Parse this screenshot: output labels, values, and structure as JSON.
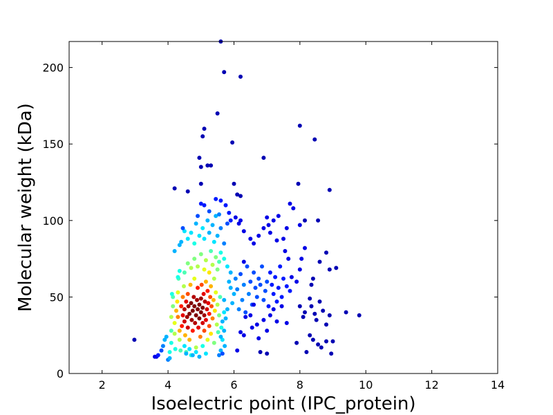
{
  "chart_data": {
    "type": "scatter",
    "title": "",
    "xlabel": "Isoelectric point (IPC_protein)",
    "ylabel": "Molecular weight (kDa)",
    "xlim": [
      1,
      14
    ],
    "ylim": [
      0,
      217
    ],
    "xticks": [
      2,
      4,
      6,
      8,
      10,
      12,
      14
    ],
    "yticks": [
      0,
      50,
      100,
      150,
      200
    ],
    "grid": false,
    "legend": "none",
    "colormap": "jet",
    "color_meaning": "point density",
    "points": [
      [
        2.98,
        22,
        0.05
      ],
      [
        3.6,
        11,
        0.1
      ],
      [
        3.65,
        11,
        0.1
      ],
      [
        3.7,
        12,
        0.15
      ],
      [
        3.8,
        15,
        0.2
      ],
      [
        3.85,
        18,
        0.25
      ],
      [
        3.9,
        22,
        0.3
      ],
      [
        3.95,
        24,
        0.3
      ],
      [
        4.0,
        9,
        0.25
      ],
      [
        4.05,
        10,
        0.3
      ],
      [
        4.05,
        14,
        0.4
      ],
      [
        4.1,
        20,
        0.4
      ],
      [
        4.1,
        28,
        0.45
      ],
      [
        4.1,
        37,
        0.55
      ],
      [
        4.15,
        44,
        0.5
      ],
      [
        4.15,
        50,
        0.45
      ],
      [
        4.12,
        52,
        0.4
      ],
      [
        4.2,
        33,
        0.6
      ],
      [
        4.2,
        26,
        0.55
      ],
      [
        4.22,
        16,
        0.4
      ],
      [
        4.25,
        41,
        0.7
      ],
      [
        4.28,
        47,
        0.65
      ],
      [
        4.3,
        37,
        0.75
      ],
      [
        4.3,
        53,
        0.6
      ],
      [
        4.32,
        62,
        0.45
      ],
      [
        4.35,
        28,
        0.7
      ],
      [
        4.35,
        22,
        0.55
      ],
      [
        4.38,
        15,
        0.45
      ],
      [
        4.4,
        44,
        0.85
      ],
      [
        4.42,
        31,
        0.85
      ],
      [
        4.45,
        38,
        0.9
      ],
      [
        4.45,
        50,
        0.75
      ],
      [
        4.48,
        57,
        0.55
      ],
      [
        4.5,
        34,
        0.92
      ],
      [
        4.5,
        42,
        0.95
      ],
      [
        4.52,
        25,
        0.7
      ],
      [
        4.55,
        47,
        0.9
      ],
      [
        4.55,
        14,
        0.45
      ],
      [
        4.58,
        37,
        0.97
      ],
      [
        4.6,
        30,
        0.92
      ],
      [
        4.6,
        52,
        0.8
      ],
      [
        4.62,
        44,
        0.97
      ],
      [
        4.65,
        39,
        1.0
      ],
      [
        4.65,
        22,
        0.7
      ],
      [
        4.68,
        58,
        0.7
      ],
      [
        4.7,
        46,
        1.0
      ],
      [
        4.7,
        12,
        0.4
      ],
      [
        4.72,
        35,
        0.97
      ],
      [
        4.75,
        41,
        1.0
      ],
      [
        4.75,
        28,
        0.85
      ],
      [
        4.78,
        50,
        0.95
      ],
      [
        4.8,
        44,
        1.0
      ],
      [
        4.8,
        62,
        0.6
      ],
      [
        4.82,
        33,
        0.95
      ],
      [
        4.85,
        38,
        1.0
      ],
      [
        4.85,
        17,
        0.55
      ],
      [
        4.88,
        48,
        0.97
      ],
      [
        4.9,
        42,
        1.0
      ],
      [
        4.9,
        56,
        0.85
      ],
      [
        4.92,
        30,
        0.9
      ],
      [
        4.95,
        45,
        1.0
      ],
      [
        4.95,
        36,
        1.0
      ],
      [
        4.98,
        24,
        0.75
      ],
      [
        5.0,
        49,
        0.97
      ],
      [
        5.0,
        40,
        1.0
      ],
      [
        5.02,
        58,
        0.8
      ],
      [
        5.05,
        33,
        0.92
      ],
      [
        5.05,
        43,
        1.0
      ],
      [
        5.08,
        52,
        0.9
      ],
      [
        5.1,
        38,
        0.97
      ],
      [
        5.1,
        28,
        0.8
      ],
      [
        5.12,
        47,
        0.95
      ],
      [
        5.15,
        60,
        0.7
      ],
      [
        5.15,
        35,
        0.9
      ],
      [
        5.18,
        42,
        0.92
      ],
      [
        5.2,
        54,
        0.85
      ],
      [
        5.2,
        22,
        0.6
      ],
      [
        5.22,
        46,
        0.9
      ],
      [
        5.25,
        31,
        0.8
      ],
      [
        5.25,
        39,
        0.85
      ],
      [
        5.28,
        50,
        0.8
      ],
      [
        5.3,
        57,
        0.7
      ],
      [
        5.3,
        26,
        0.65
      ],
      [
        5.32,
        44,
        0.8
      ],
      [
        5.35,
        36,
        0.75
      ],
      [
        5.38,
        48,
        0.7
      ],
      [
        5.4,
        62,
        0.55
      ],
      [
        5.4,
        20,
        0.5
      ],
      [
        5.42,
        41,
        0.65
      ],
      [
        5.45,
        53,
        0.6
      ],
      [
        5.48,
        32,
        0.55
      ],
      [
        5.5,
        45,
        0.55
      ],
      [
        5.52,
        27,
        0.45
      ],
      [
        5.55,
        38,
        0.5
      ],
      [
        5.58,
        50,
        0.45
      ],
      [
        5.6,
        15,
        0.3
      ],
      [
        5.62,
        30,
        0.4
      ],
      [
        5.65,
        22,
        0.35
      ],
      [
        5.7,
        40,
        0.35
      ],
      [
        5.72,
        18,
        0.3
      ],
      [
        4.3,
        63,
        0.4
      ],
      [
        4.35,
        67,
        0.4
      ],
      [
        4.5,
        66,
        0.45
      ],
      [
        4.6,
        72,
        0.5
      ],
      [
        4.7,
        69,
        0.55
      ],
      [
        4.8,
        75,
        0.5
      ],
      [
        4.9,
        70,
        0.55
      ],
      [
        5.0,
        78,
        0.5
      ],
      [
        5.1,
        68,
        0.6
      ],
      [
        5.15,
        74,
        0.55
      ],
      [
        5.25,
        66,
        0.65
      ],
      [
        5.3,
        80,
        0.45
      ],
      [
        5.35,
        71,
        0.55
      ],
      [
        5.45,
        76,
        0.5
      ],
      [
        5.5,
        68,
        0.5
      ],
      [
        5.55,
        73,
        0.45
      ],
      [
        5.6,
        79,
        0.4
      ],
      [
        5.7,
        75,
        0.4
      ],
      [
        5.8,
        70,
        0.35
      ],
      [
        5.9,
        66,
        0.3
      ],
      [
        4.2,
        80,
        0.3
      ],
      [
        4.35,
        84,
        0.3
      ],
      [
        4.4,
        86,
        0.3
      ],
      [
        4.5,
        93,
        0.35
      ],
      [
        4.6,
        88,
        0.35
      ],
      [
        4.7,
        92,
        0.35
      ],
      [
        4.8,
        85,
        0.4
      ],
      [
        4.85,
        98,
        0.3
      ],
      [
        4.95,
        90,
        0.35
      ],
      [
        5.05,
        95,
        0.35
      ],
      [
        5.1,
        88,
        0.35
      ],
      [
        5.2,
        100,
        0.3
      ],
      [
        5.25,
        92,
        0.3
      ],
      [
        5.35,
        97,
        0.3
      ],
      [
        5.4,
        86,
        0.35
      ],
      [
        5.45,
        103,
        0.3
      ],
      [
        5.5,
        90,
        0.3
      ],
      [
        5.6,
        95,
        0.25
      ],
      [
        5.7,
        85,
        0.25
      ],
      [
        5.8,
        98,
        0.2
      ],
      [
        4.45,
        95,
        0.2
      ],
      [
        4.9,
        103,
        0.2
      ],
      [
        5.0,
        111,
        0.15
      ],
      [
        5.1,
        110,
        0.15
      ],
      [
        5.25,
        106,
        0.2
      ],
      [
        5.45,
        114,
        0.15
      ],
      [
        5.55,
        104,
        0.25
      ],
      [
        5.6,
        113,
        0.15
      ],
      [
        5.75,
        110,
        0.15
      ],
      [
        5.85,
        105,
        0.15
      ],
      [
        5.9,
        100,
        0.15
      ],
      [
        6.05,
        102,
        0.1
      ],
      [
        6.15,
        98,
        0.1
      ],
      [
        6.2,
        100,
        0.1
      ],
      [
        6.3,
        93,
        0.1
      ],
      [
        6.5,
        88,
        0.1
      ],
      [
        6.6,
        85,
        0.1
      ],
      [
        6.75,
        90,
        0.1
      ],
      [
        6.9,
        95,
        0.1
      ],
      [
        7.0,
        102,
        0.1
      ],
      [
        7.05,
        97,
        0.1
      ],
      [
        7.1,
        92,
        0.1
      ],
      [
        7.2,
        100,
        0.1
      ],
      [
        7.3,
        87,
        0.1
      ],
      [
        7.35,
        103,
        0.1
      ],
      [
        7.5,
        88,
        0.1
      ],
      [
        7.6,
        95,
        0.1
      ],
      [
        7.7,
        111,
        0.1
      ],
      [
        7.8,
        108,
        0.1
      ],
      [
        8.0,
        97,
        0.1
      ],
      [
        8.15,
        100,
        0.05
      ],
      [
        4.2,
        121,
        0.05
      ],
      [
        4.6,
        119,
        0.05
      ],
      [
        5.0,
        124,
        0.05
      ],
      [
        5.2,
        136,
        0.05
      ],
      [
        4.95,
        141,
        0.05
      ],
      [
        5.0,
        135,
        0.05
      ],
      [
        5.05,
        155,
        0.05
      ],
      [
        5.1,
        160,
        0.05
      ],
      [
        5.3,
        136,
        0.05
      ],
      [
        5.5,
        170,
        0.05
      ],
      [
        5.6,
        217,
        0.05
      ],
      [
        5.7,
        197,
        0.05
      ],
      [
        5.95,
        151,
        0.05
      ],
      [
        6.2,
        194,
        0.05
      ],
      [
        6.9,
        141,
        0.05
      ],
      [
        7.95,
        124,
        0.05
      ],
      [
        8.0,
        162,
        0.05
      ],
      [
        8.45,
        153,
        0.05
      ],
      [
        8.9,
        120,
        0.05
      ],
      [
        6.0,
        124,
        0.05
      ],
      [
        6.1,
        117,
        0.05
      ],
      [
        6.2,
        116,
        0.05
      ],
      [
        8.55,
        100,
        0.05
      ],
      [
        8.8,
        79,
        0.05
      ],
      [
        8.6,
        73,
        0.05
      ],
      [
        8.9,
        68,
        0.05
      ],
      [
        9.1,
        69,
        0.05
      ],
      [
        8.4,
        62,
        0.05
      ],
      [
        8.35,
        58,
        0.05
      ],
      [
        8.3,
        49,
        0.05
      ],
      [
        8.35,
        44,
        0.05
      ],
      [
        8.45,
        39,
        0.05
      ],
      [
        8.5,
        35,
        0.05
      ],
      [
        8.6,
        47,
        0.05
      ],
      [
        8.7,
        41,
        0.05
      ],
      [
        8.8,
        32,
        0.05
      ],
      [
        8.9,
        38,
        0.05
      ],
      [
        8.4,
        22,
        0.05
      ],
      [
        8.55,
        19,
        0.05
      ],
      [
        8.65,
        17,
        0.05
      ],
      [
        8.8,
        21,
        0.05
      ],
      [
        8.95,
        13,
        0.05
      ],
      [
        9.0,
        21,
        0.05
      ],
      [
        9.4,
        40,
        0.05
      ],
      [
        9.8,
        38,
        0.05
      ],
      [
        8.0,
        44,
        0.05
      ],
      [
        8.1,
        37,
        0.05
      ],
      [
        8.15,
        40,
        0.05
      ],
      [
        8.2,
        14,
        0.05
      ],
      [
        8.3,
        25,
        0.05
      ],
      [
        7.9,
        20,
        0.05
      ],
      [
        7.9,
        60,
        0.1
      ],
      [
        8.0,
        68,
        0.1
      ],
      [
        8.05,
        75,
        0.1
      ],
      [
        8.15,
        82,
        0.1
      ],
      [
        7.75,
        63,
        0.1
      ],
      [
        7.7,
        54,
        0.15
      ],
      [
        7.6,
        57,
        0.15
      ],
      [
        7.5,
        62,
        0.15
      ],
      [
        7.45,
        50,
        0.15
      ],
      [
        7.4,
        70,
        0.15
      ],
      [
        7.35,
        56,
        0.15
      ],
      [
        7.3,
        47,
        0.15
      ],
      [
        7.25,
        63,
        0.15
      ],
      [
        7.2,
        52,
        0.15
      ],
      [
        7.15,
        58,
        0.15
      ],
      [
        7.1,
        66,
        0.15
      ],
      [
        7.05,
        44,
        0.15
      ],
      [
        7.0,
        60,
        0.2
      ],
      [
        6.95,
        54,
        0.2
      ],
      [
        6.9,
        48,
        0.2
      ],
      [
        6.85,
        70,
        0.2
      ],
      [
        6.8,
        58,
        0.2
      ],
      [
        6.75,
        62,
        0.2
      ],
      [
        6.7,
        50,
        0.2
      ],
      [
        6.65,
        56,
        0.2
      ],
      [
        6.6,
        66,
        0.2
      ],
      [
        6.55,
        45,
        0.2
      ],
      [
        6.5,
        60,
        0.2
      ],
      [
        6.45,
        52,
        0.25
      ],
      [
        6.4,
        70,
        0.2
      ],
      [
        6.35,
        40,
        0.2
      ],
      [
        6.3,
        58,
        0.25
      ],
      [
        6.25,
        48,
        0.25
      ],
      [
        6.2,
        65,
        0.2
      ],
      [
        6.15,
        42,
        0.25
      ],
      [
        6.1,
        55,
        0.25
      ],
      [
        6.05,
        62,
        0.25
      ],
      [
        6.0,
        52,
        0.3
      ],
      [
        5.95,
        46,
        0.3
      ],
      [
        5.9,
        56,
        0.3
      ],
      [
        5.85,
        60,
        0.3
      ],
      [
        5.8,
        42,
        0.3
      ],
      [
        5.75,
        36,
        0.3
      ],
      [
        5.7,
        48,
        0.3
      ],
      [
        5.7,
        28,
        0.3
      ],
      [
        5.65,
        34,
        0.3
      ],
      [
        5.6,
        24,
        0.3
      ],
      [
        5.55,
        12,
        0.25
      ],
      [
        5.65,
        13,
        0.2
      ],
      [
        6.2,
        27,
        0.1
      ],
      [
        6.3,
        25,
        0.1
      ],
      [
        6.35,
        37,
        0.1
      ],
      [
        6.5,
        38,
        0.1
      ],
      [
        6.55,
        30,
        0.1
      ],
      [
        6.6,
        45,
        0.1
      ],
      [
        6.7,
        32,
        0.1
      ],
      [
        6.75,
        23,
        0.1
      ],
      [
        6.8,
        14,
        0.05
      ],
      [
        6.9,
        35,
        0.1
      ],
      [
        7.0,
        28,
        0.1
      ],
      [
        7.0,
        13,
        0.05
      ],
      [
        7.1,
        38,
        0.1
      ],
      [
        7.2,
        42,
        0.1
      ],
      [
        7.3,
        34,
        0.1
      ],
      [
        7.45,
        44,
        0.1
      ],
      [
        7.6,
        33,
        0.1
      ],
      [
        6.1,
        15,
        0.1
      ],
      [
        6.3,
        73,
        0.1
      ],
      [
        7.55,
        80,
        0.1
      ],
      [
        7.65,
        75,
        0.1
      ],
      [
        4.5,
        18,
        0.35
      ],
      [
        4.55,
        13,
        0.3
      ],
      [
        4.65,
        16,
        0.35
      ],
      [
        4.75,
        12,
        0.3
      ],
      [
        4.85,
        14,
        0.35
      ],
      [
        4.95,
        11,
        0.3
      ],
      [
        5.05,
        18,
        0.4
      ],
      [
        5.15,
        13,
        0.35
      ]
    ]
  }
}
